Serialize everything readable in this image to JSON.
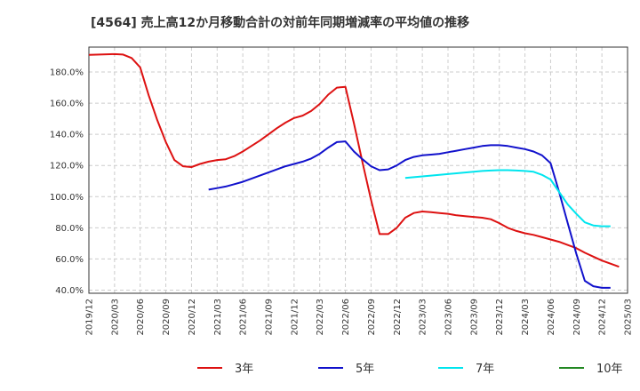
{
  "chart_data": {
    "type": "line",
    "title": "[4564]  売上高12か月移動合計の対前年同期増減率の平均値の推移",
    "xlabel": "",
    "ylabel": "",
    "y_tick_labels": [
      "40.0%",
      "60.0%",
      "80.0%",
      "100.0%",
      "120.0%",
      "140.0%",
      "160.0%",
      "180.0%"
    ],
    "ylim": [
      38,
      196
    ],
    "x_tick_labels": [
      "2019/12",
      "2020/03",
      "2020/06",
      "2020/09",
      "2020/12",
      "2021/03",
      "2021/06",
      "2021/09",
      "2021/12",
      "2022/03",
      "2022/06",
      "2022/09",
      "2022/12",
      "2023/03",
      "2023/06",
      "2023/09",
      "2023/12",
      "2024/03",
      "2024/06",
      "2024/09",
      "2024/12",
      "2025/03"
    ],
    "x_units": "months since 2019/12",
    "xlim": [
      0,
      63
    ],
    "grid": true,
    "legend_position": "bottom",
    "series": [
      {
        "name": "3年",
        "color": "#dd1111",
        "points": [
          [
            0,
            191.0
          ],
          [
            3,
            191.5
          ],
          [
            4,
            191.2
          ],
          [
            5,
            189.0
          ],
          [
            6,
            183.0
          ],
          [
            7,
            165.0
          ],
          [
            8,
            149.0
          ],
          [
            9,
            135.0
          ],
          [
            10,
            123.5
          ],
          [
            11,
            119.5
          ],
          [
            12,
            119.0
          ],
          [
            13,
            121.0
          ],
          [
            14,
            122.5
          ],
          [
            15,
            123.5
          ],
          [
            16,
            124.0
          ],
          [
            17,
            126.0
          ],
          [
            18,
            129.0
          ],
          [
            19,
            132.5
          ],
          [
            20,
            136.0
          ],
          [
            21,
            140.0
          ],
          [
            22,
            144.0
          ],
          [
            23,
            147.5
          ],
          [
            24,
            150.5
          ],
          [
            25,
            152.0
          ],
          [
            26,
            155.0
          ],
          [
            27,
            159.5
          ],
          [
            28,
            165.5
          ],
          [
            29,
            170.0
          ],
          [
            30,
            170.5
          ],
          [
            31,
            147.0
          ],
          [
            32,
            122.0
          ],
          [
            33,
            98.0
          ],
          [
            34,
            76.0
          ],
          [
            35,
            76.0
          ],
          [
            36,
            80.0
          ],
          [
            37,
            86.5
          ],
          [
            38,
            89.5
          ],
          [
            39,
            90.5
          ],
          [
            40,
            90.0
          ],
          [
            41,
            89.5
          ],
          [
            42,
            89.0
          ],
          [
            43,
            88.0
          ],
          [
            44,
            87.5
          ],
          [
            45,
            87.0
          ],
          [
            46,
            86.5
          ],
          [
            47,
            85.5
          ],
          [
            48,
            83.0
          ],
          [
            49,
            80.0
          ],
          [
            50,
            78.0
          ],
          [
            51,
            76.5
          ],
          [
            52,
            75.5
          ],
          [
            53,
            74.0
          ],
          [
            54,
            72.5
          ],
          [
            55,
            71.0
          ],
          [
            56,
            69.0
          ],
          [
            57,
            67.0
          ],
          [
            58,
            64.0
          ],
          [
            59,
            61.5
          ],
          [
            60,
            59.0
          ],
          [
            61,
            57.0
          ],
          [
            62,
            55.0
          ]
        ]
      },
      {
        "name": "5年",
        "color": "#1111cc",
        "points": [
          [
            14,
            104.5
          ],
          [
            15,
            105.5
          ],
          [
            16,
            106.5
          ],
          [
            17,
            108.0
          ],
          [
            18,
            109.5
          ],
          [
            19,
            111.5
          ],
          [
            20,
            113.5
          ],
          [
            21,
            115.5
          ],
          [
            22,
            117.5
          ],
          [
            23,
            119.5
          ],
          [
            24,
            121.0
          ],
          [
            25,
            122.5
          ],
          [
            26,
            124.5
          ],
          [
            27,
            127.5
          ],
          [
            28,
            131.5
          ],
          [
            29,
            135.0
          ],
          [
            30,
            135.5
          ],
          [
            31,
            129.0
          ],
          [
            32,
            124.0
          ],
          [
            33,
            119.5
          ],
          [
            34,
            117.0
          ],
          [
            35,
            117.5
          ],
          [
            36,
            120.0
          ],
          [
            37,
            123.5
          ],
          [
            38,
            125.5
          ],
          [
            39,
            126.5
          ],
          [
            40,
            127.0
          ],
          [
            41,
            127.5
          ],
          [
            42,
            128.5
          ],
          [
            43,
            129.5
          ],
          [
            44,
            130.5
          ],
          [
            45,
            131.5
          ],
          [
            46,
            132.5
          ],
          [
            47,
            133.0
          ],
          [
            48,
            133.0
          ],
          [
            49,
            132.5
          ],
          [
            50,
            131.5
          ],
          [
            51,
            130.5
          ],
          [
            52,
            129.0
          ],
          [
            53,
            126.5
          ],
          [
            54,
            121.5
          ],
          [
            55,
            103.0
          ],
          [
            56,
            83.0
          ],
          [
            57,
            63.5
          ],
          [
            58,
            46.0
          ],
          [
            59,
            42.5
          ],
          [
            60,
            41.5
          ],
          [
            61,
            41.5
          ]
        ]
      },
      {
        "name": "7年",
        "color": "#00e5ee",
        "points": [
          [
            37,
            112.0
          ],
          [
            38,
            112.5
          ],
          [
            39,
            113.0
          ],
          [
            40,
            113.5
          ],
          [
            41,
            114.0
          ],
          [
            42,
            114.5
          ],
          [
            43,
            115.0
          ],
          [
            44,
            115.5
          ],
          [
            45,
            116.0
          ],
          [
            46,
            116.5
          ],
          [
            47,
            116.8
          ],
          [
            48,
            117.0
          ],
          [
            49,
            117.0
          ],
          [
            50,
            116.8
          ],
          [
            51,
            116.5
          ],
          [
            52,
            116.0
          ],
          [
            53,
            114.0
          ],
          [
            54,
            111.0
          ],
          [
            55,
            103.0
          ],
          [
            56,
            95.0
          ],
          [
            57,
            89.0
          ],
          [
            58,
            83.5
          ],
          [
            59,
            81.5
          ],
          [
            60,
            81.0
          ],
          [
            61,
            81.0
          ]
        ]
      },
      {
        "name": "10年",
        "color": "#228822",
        "points": []
      }
    ]
  }
}
